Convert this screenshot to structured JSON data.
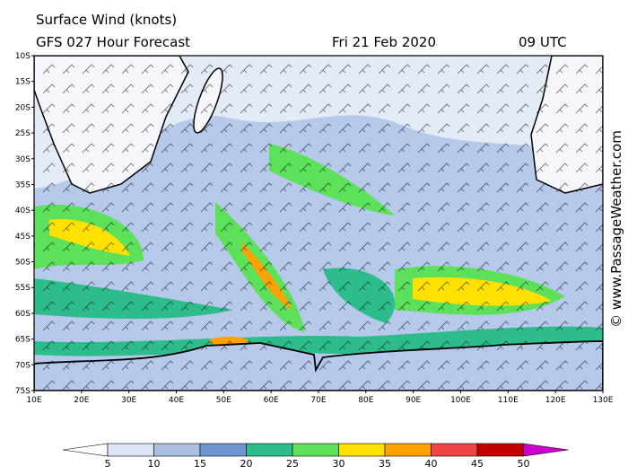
{
  "header": {
    "title": "Surface Wind (knots)",
    "subtitle": "GFS 027 Hour Forecast",
    "date": "Fri 21 Feb 2020",
    "time": "09 UTC"
  },
  "map": {
    "lat_labels": [
      "10S",
      "15S",
      "20S",
      "25S",
      "30S",
      "35S",
      "40S",
      "45S",
      "50S",
      "55S",
      "60S",
      "65S",
      "70S",
      "75S"
    ],
    "lon_labels": [
      "10E",
      "20E",
      "30E",
      "40E",
      "50E",
      "60E",
      "70E",
      "80E",
      "90E",
      "100E",
      "110E",
      "120E",
      "130E"
    ]
  },
  "colorbar": {
    "levels": [
      5,
      10,
      15,
      20,
      25,
      30,
      35,
      40,
      45,
      50
    ],
    "colors": [
      "#ffffff",
      "#dbe5f5",
      "#a9c0e3",
      "#6f95d0",
      "#2dbd8c",
      "#5de05a",
      "#ffe100",
      "#ffa200",
      "#f04545",
      "#c20000",
      "#cc00cc"
    ]
  },
  "credit": "© www.PassageWeather.com"
}
